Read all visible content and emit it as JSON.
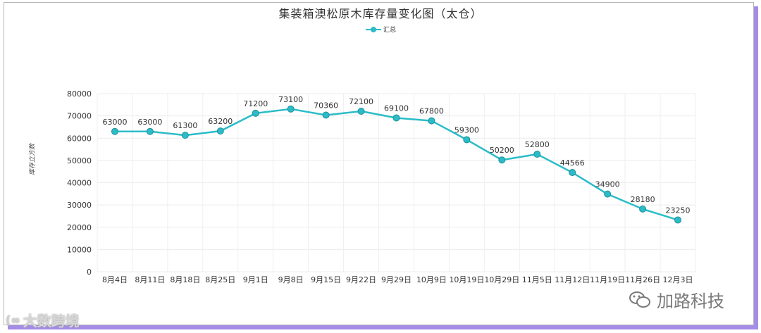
{
  "chart_data": {
    "type": "line",
    "title": "集装箱澳松原木库存量变化图（太仓）",
    "ylabel": "库存立方数",
    "xlabel": "",
    "ylim": [
      0,
      80000
    ],
    "yticks": [
      0,
      10000,
      20000,
      30000,
      40000,
      50000,
      60000,
      70000,
      80000
    ],
    "grid": true,
    "legend_position": "top-center",
    "categories": [
      "8月4日",
      "8月11日",
      "8月18日",
      "8月25日",
      "9月1日",
      "9月8日",
      "9月15日",
      "9月22日",
      "9月29日",
      "10月9日",
      "10月19日",
      "10月29日",
      "11月5日",
      "11月12日",
      "11月19日",
      "11月26日",
      "12月3日"
    ],
    "series": [
      {
        "name": "汇总",
        "color": "#2bbcc8",
        "values": [
          63000,
          63000,
          61300,
          63200,
          71200,
          73100,
          70360,
          72100,
          69100,
          67800,
          59300,
          50200,
          52800,
          44566,
          34900,
          28180,
          23250
        ]
      }
    ]
  },
  "watermarks": {
    "left_text": "大数跨境",
    "right_text": "加路科技"
  }
}
